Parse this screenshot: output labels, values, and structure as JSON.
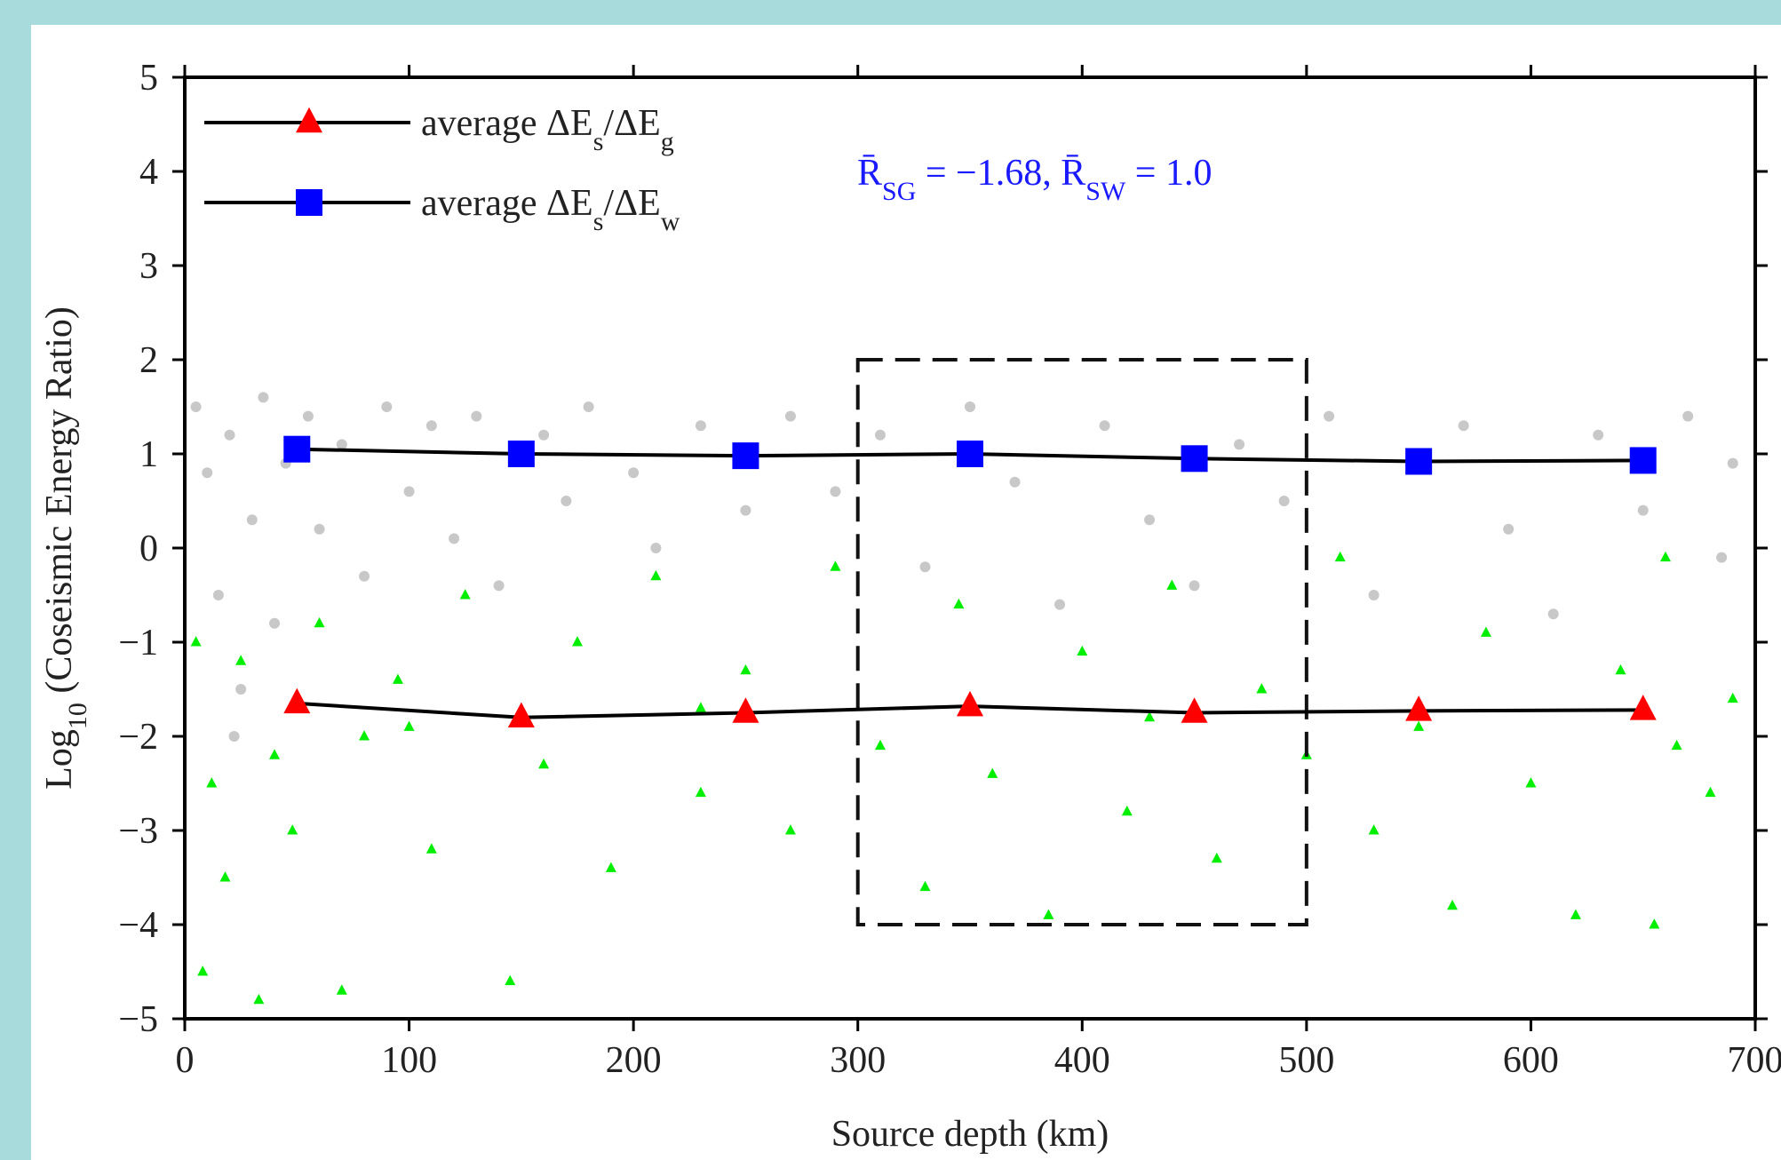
{
  "chart_data": {
    "type": "scatter",
    "xlabel": "Source depth (km)",
    "ylabel": [
      "Log",
      "10",
      " (Coseismic Energy Ratio)"
    ],
    "annotation": {
      "text": [
        "R̄",
        "SG",
        " = −1.68, R̄",
        "SW",
        " = 1.0"
      ],
      "color": "#1a1aff"
    },
    "xlim": [
      0,
      700
    ],
    "ylim": [
      -5,
      5
    ],
    "xticks": [
      0,
      100,
      200,
      300,
      400,
      500,
      600,
      700
    ],
    "yticks": [
      {
        "value": -5,
        "label": "−5"
      },
      {
        "value": -4,
        "label": "−4"
      },
      {
        "value": -3,
        "label": "−3"
      },
      {
        "value": -2,
        "label": "−2"
      },
      {
        "value": -1,
        "label": "−1"
      },
      0,
      1,
      2,
      3,
      4,
      5
    ],
    "box": {
      "xlim": [
        300,
        500
      ],
      "ylim": [
        -4,
        2
      ]
    },
    "legend": "upper left",
    "clouds": [
      {
        "color": "#c8c8c8",
        "marker": "circle",
        "x": [
          5,
          10,
          15,
          20,
          25,
          30,
          35,
          40,
          45,
          55,
          60,
          70,
          80,
          90,
          100,
          110,
          120,
          130,
          140,
          160,
          170,
          180,
          200,
          210,
          230,
          250,
          270,
          290,
          310,
          330,
          350,
          370,
          390,
          410,
          430,
          450,
          470,
          490,
          510,
          530,
          550,
          570,
          590,
          610,
          630,
          650,
          670,
          690,
          685,
          22
        ],
        "values": [
          1.5,
          0.8,
          -0.5,
          1.2,
          -1.5,
          0.3,
          1.6,
          -0.8,
          0.9,
          1.4,
          0.2,
          1.1,
          -0.3,
          1.5,
          0.6,
          1.3,
          0.1,
          1.4,
          -0.4,
          1.2,
          0.5,
          1.5,
          0.8,
          0.0,
          1.3,
          0.4,
          1.4,
          0.6,
          1.2,
          -0.2,
          1.5,
          0.7,
          -0.6,
          1.3,
          0.3,
          -0.4,
          1.1,
          0.5,
          1.4,
          -0.5,
          0.9,
          1.3,
          0.2,
          -0.7,
          1.2,
          0.4,
          1.4,
          0.9,
          -0.1,
          -2.0
        ]
      },
      {
        "color": "#00ee00",
        "marker": "triangle",
        "x": [
          5,
          8,
          12,
          18,
          25,
          33,
          40,
          48,
          60,
          70,
          80,
          95,
          110,
          125,
          145,
          160,
          175,
          190,
          210,
          230,
          250,
          270,
          290,
          310,
          330,
          345,
          360,
          385,
          400,
          420,
          440,
          460,
          480,
          500,
          515,
          530,
          550,
          565,
          580,
          600,
          620,
          640,
          655,
          665,
          680,
          690,
          660,
          430,
          230,
          100
        ],
        "values": [
          -1.0,
          -4.5,
          -2.5,
          -3.5,
          -1.2,
          -4.8,
          -2.2,
          -3.0,
          -0.8,
          -4.7,
          -2.0,
          -1.4,
          -3.2,
          -0.5,
          -4.6,
          -2.3,
          -1.0,
          -3.4,
          -0.3,
          -2.6,
          -1.3,
          -3.0,
          -0.2,
          -2.1,
          -3.6,
          -0.6,
          -2.4,
          -3.9,
          -1.1,
          -2.8,
          -0.4,
          -3.3,
          -1.5,
          -2.2,
          -0.1,
          -3.0,
          -1.9,
          -3.8,
          -0.9,
          -2.5,
          -3.9,
          -1.3,
          -4.0,
          -2.1,
          -2.6,
          -1.6,
          -0.1,
          -1.8,
          -1.7,
          -1.9
        ]
      }
    ],
    "series": [
      {
        "name": [
          "average ΔE",
          "s",
          "/ΔE",
          "g"
        ],
        "color": "#ff0000",
        "marker": "triangle",
        "x": [
          50,
          150,
          250,
          350,
          450,
          550,
          650
        ],
        "values": [
          -1.65,
          -1.8,
          -1.75,
          -1.68,
          -1.75,
          -1.73,
          -1.72
        ]
      },
      {
        "name": [
          "average ΔE",
          "s",
          "/ΔE",
          "w"
        ],
        "color": "#0000ff",
        "marker": "square",
        "x": [
          50,
          150,
          250,
          350,
          450,
          550,
          650
        ],
        "values": [
          1.05,
          1.0,
          0.98,
          1.0,
          0.95,
          0.92,
          0.93
        ]
      }
    ]
  }
}
